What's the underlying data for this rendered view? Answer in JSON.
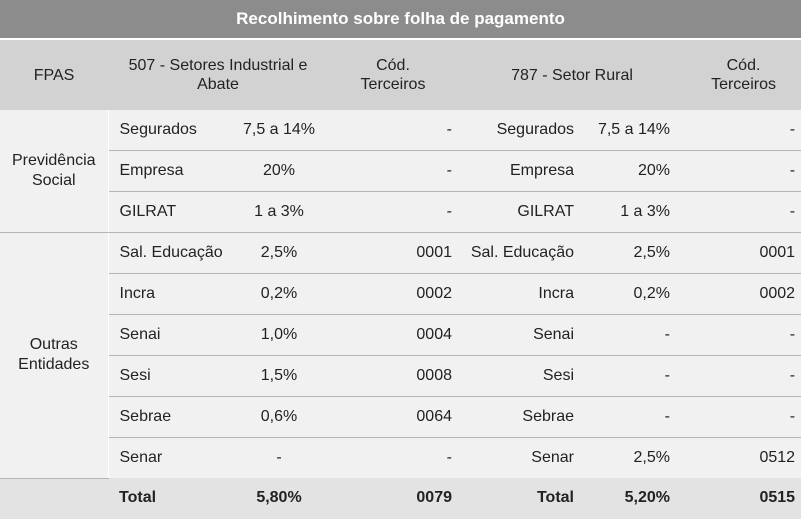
{
  "title": "Recolhimento sobre folha de pagamento",
  "header": {
    "fpas": "FPAS",
    "col_507": "507 - Setores Industrial e Abate",
    "cod_terceiros_1": "Cód. Terceiros",
    "col_787": "787 - Setor Rural",
    "cod_terceiros_2": "Cód. Terceiros"
  },
  "groups": {
    "previdencia": "Previdência Social",
    "outras": "Outras Entidades"
  },
  "rows": [
    {
      "l1": "Segurados",
      "r1": "7,5 a 14%",
      "c1": "-",
      "l2": "Segurados",
      "r2": "7,5 a 14%",
      "c2": "-"
    },
    {
      "l1": "Empresa",
      "r1": "20%",
      "c1": "-",
      "l2": "Empresa",
      "r2": "20%",
      "c2": "-"
    },
    {
      "l1": "GILRAT",
      "r1": "1 a 3%",
      "c1": "-",
      "l2": "GILRAT",
      "r2": "1 a 3%",
      "c2": "-"
    },
    {
      "l1": "Sal. Educação",
      "r1": "2,5%",
      "c1": "0001",
      "l2": "Sal. Educação",
      "r2": "2,5%",
      "c2": "0001"
    },
    {
      "l1": "Incra",
      "r1": "0,2%",
      "c1": "0002",
      "l2": "Incra",
      "r2": "0,2%",
      "c2": "0002"
    },
    {
      "l1": "Senai",
      "r1": "1,0%",
      "c1": "0004",
      "l2": "Senai",
      "r2": "-",
      "c2": "-"
    },
    {
      "l1": "Sesi",
      "r1": "1,5%",
      "c1": "0008",
      "l2": "Sesi",
      "r2": "-",
      "c2": "-"
    },
    {
      "l1": "Sebrae",
      "r1": "0,6%",
      "c1": "0064",
      "l2": "Sebrae",
      "r2": "-",
      "c2": "-"
    },
    {
      "l1": "Senar",
      "r1": "-",
      "c1": "-",
      "l2": "Senar",
      "r2": "2,5%",
      "c2": "0512"
    }
  ],
  "total": {
    "l1": "Total",
    "r1": "5,80%",
    "c1": "0079",
    "l2": "Total",
    "r2": "5,20%",
    "c2": "0515"
  }
}
